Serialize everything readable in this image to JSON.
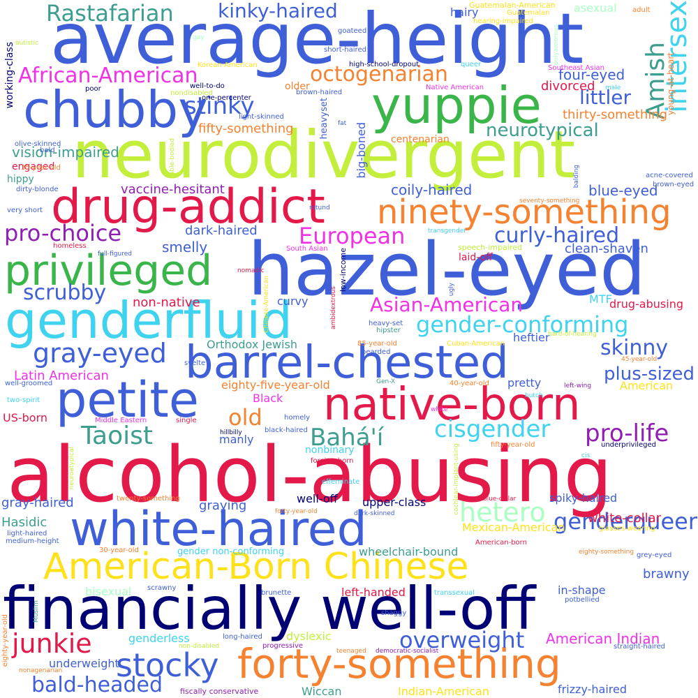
{
  "words": [
    {
      "t": "average-height",
      "c": "#3f5fd8"
    },
    {
      "t": "neurodivergent",
      "c": "#c3ef3c"
    },
    {
      "t": "chubby",
      "c": "#3f5fd8"
    },
    {
      "t": "yuppie",
      "c": "#39b54a"
    },
    {
      "t": "drug-addict",
      "c": "#e3194a"
    },
    {
      "t": "hazel-eyed",
      "c": "#3f5fd8"
    },
    {
      "t": "privileged",
      "c": "#39b54a"
    },
    {
      "t": "genderfluid",
      "c": "#3fd3f0"
    },
    {
      "t": "barrel-chested",
      "c": "#3f5fd8"
    },
    {
      "t": "petite",
      "c": "#3f5fd8"
    },
    {
      "t": "native-born",
      "c": "#e3194a"
    },
    {
      "t": "alcohol-abusing",
      "c": "#e3194a"
    },
    {
      "t": "white-haired",
      "c": "#3f5fd8"
    },
    {
      "t": "American-Born Chinese",
      "c": "#ffe11a"
    },
    {
      "t": "financially well-off",
      "c": "#000075"
    },
    {
      "t": "forty-something",
      "c": "#f58231"
    },
    {
      "t": "ninety-something",
      "c": "#f58231"
    },
    {
      "t": "Rastafarian",
      "c": "#3c9e8e"
    },
    {
      "t": "kinky-haired",
      "c": "#3f5fd8"
    },
    {
      "t": "African-American",
      "c": "#f032e6"
    },
    {
      "t": "octogenarian",
      "c": "#f58231"
    },
    {
      "t": "intersex",
      "c": "#3fd3f0"
    },
    {
      "t": "Amish",
      "c": "#3c9e8e"
    },
    {
      "t": "stinky",
      "c": "#3f5fd8"
    },
    {
      "t": "littler",
      "c": "#3f5fd8"
    },
    {
      "t": "neurotypical",
      "c": "#3c9e8e"
    },
    {
      "t": "curly-haired",
      "c": "#3f5fd8"
    },
    {
      "t": "pro-choice",
      "c": "#911eb4"
    },
    {
      "t": "European",
      "c": "#f032e6"
    },
    {
      "t": "scrubby",
      "c": "#3f5fd8"
    },
    {
      "t": "Asian-American",
      "c": "#f032e6"
    },
    {
      "t": "gender-conforming",
      "c": "#3fd3f0"
    },
    {
      "t": "gray-eyed",
      "c": "#3f5fd8"
    },
    {
      "t": "skinny",
      "c": "#3f5fd8"
    },
    {
      "t": "old",
      "c": "#f58231"
    },
    {
      "t": "Taoist",
      "c": "#3c9e8e"
    },
    {
      "t": "Bahá'í",
      "c": "#3c9e8e"
    },
    {
      "t": "cisgender",
      "c": "#3fd3f0"
    },
    {
      "t": "pro-life",
      "c": "#911eb4"
    },
    {
      "t": "plus-sized",
      "c": "#3f5fd8"
    },
    {
      "t": "junkie",
      "c": "#e3194a"
    },
    {
      "t": "stocky",
      "c": "#3f5fd8"
    },
    {
      "t": "overweight",
      "c": "#3f5fd8"
    },
    {
      "t": "bald-headed",
      "c": "#3f5fd8"
    },
    {
      "t": "hetero",
      "c": "#aaffc3"
    },
    {
      "t": "genderqueer",
      "c": "#3f5fd8"
    },
    {
      "t": "Wiccan",
      "c": "#3c9e8e"
    },
    {
      "t": "vision-impaired",
      "c": "#3c9e8e"
    },
    {
      "t": "fifty-something",
      "c": "#f58231"
    },
    {
      "t": "four-eyed",
      "c": "#3f5fd8"
    },
    {
      "t": "divorced",
      "c": "#e3194a"
    },
    {
      "t": "thirty-something",
      "c": "#f58231"
    },
    {
      "t": "vaccine-hesitant",
      "c": "#911eb4"
    },
    {
      "t": "coily-haired",
      "c": "#3f5fd8"
    },
    {
      "t": "blue-eyed",
      "c": "#3f5fd8"
    },
    {
      "t": "dark-haired",
      "c": "#3f5fd8"
    },
    {
      "t": "smelly",
      "c": "#3f5fd8"
    },
    {
      "t": "clean-shaven",
      "c": "#3f5fd8"
    },
    {
      "t": "non-native",
      "c": "#e3194a"
    },
    {
      "t": "curvy",
      "c": "#3f5fd8"
    },
    {
      "t": "drug-abusing",
      "c": "#e3194a"
    },
    {
      "t": "MTF",
      "c": "#3fd3f0"
    },
    {
      "t": "heftier",
      "c": "#3f5fd8"
    },
    {
      "t": "Orthodox Jewish",
      "c": "#3c9e8e"
    },
    {
      "t": "Latin American",
      "c": "#f032e6"
    },
    {
      "t": "eighty-five-year-old",
      "c": "#f58231"
    },
    {
      "t": "pretty",
      "c": "#3f5fd8"
    },
    {
      "t": "American",
      "c": "#ffe11a"
    },
    {
      "t": "Black",
      "c": "#f032e6"
    },
    {
      "t": "US-born",
      "c": "#e3194a"
    },
    {
      "t": "manly",
      "c": "#3f5fd8"
    },
    {
      "t": "nonbinary",
      "c": "#3fd3f0"
    },
    {
      "t": "gray-haired",
      "c": "#3f5fd8"
    },
    {
      "t": "graying",
      "c": "#3f5fd8"
    },
    {
      "t": "well-off",
      "c": "#000075"
    },
    {
      "t": "upper-class",
      "c": "#000075"
    },
    {
      "t": "spiky-haired",
      "c": "#3f5fd8"
    },
    {
      "t": "white-collar",
      "c": "#e3194a"
    },
    {
      "t": "Hasidic",
      "c": "#3c9e8e"
    },
    {
      "t": "Mexican-American",
      "c": "#ffe11a"
    },
    {
      "t": "gender non-conforming",
      "c": "#3fd3f0"
    },
    {
      "t": "wheelchair-bound",
      "c": "#3c9e8e"
    },
    {
      "t": "brawny",
      "c": "#3f5fd8"
    },
    {
      "t": "bisexual",
      "c": "#aaffc3"
    },
    {
      "t": "left-handed",
      "c": "#e3194a"
    },
    {
      "t": "in-shape",
      "c": "#3f5fd8"
    },
    {
      "t": "genderless",
      "c": "#3fd3f0"
    },
    {
      "t": "dyslexic",
      "c": "#c3ef3c"
    },
    {
      "t": "American Indian",
      "c": "#f032e6"
    },
    {
      "t": "underweight",
      "c": "#3f5fd8"
    },
    {
      "t": "Indian-American",
      "c": "#ffe11a"
    },
    {
      "t": "frizzy-haired",
      "c": "#3f5fd8"
    },
    {
      "t": "hairy",
      "c": "#3f5fd8"
    },
    {
      "t": "asexual",
      "c": "#aaffc3"
    },
    {
      "t": "engaged",
      "c": "#e3194a"
    },
    {
      "t": "hippy",
      "c": "#3c9e8e"
    },
    {
      "t": "centenarian",
      "c": "#f58231"
    },
    {
      "t": "big-boned",
      "c": "#3f5fd8"
    },
    {
      "t": "older",
      "c": "#f58231"
    },
    {
      "t": "laid-off",
      "c": "#e3194a"
    },
    {
      "t": "working-class",
      "c": "#000075"
    },
    {
      "t": "heavyset",
      "c": "#3f5fd8"
    },
    {
      "t": "young-at-heart",
      "c": "#f58231"
    },
    {
      "t": "Guatemalan-American",
      "c": "#ffe11a"
    },
    {
      "t": "Guatemalan",
      "c": "#ffe11a"
    },
    {
      "t": "hearing-impaired",
      "c": "#ffe11a"
    },
    {
      "t": "adult",
      "c": "#f58231"
    },
    {
      "t": "goateed",
      "c": "#3f5fd8"
    },
    {
      "t": "short-haired",
      "c": "#3f5fd8"
    },
    {
      "t": "high-school-dropout",
      "c": "#000075"
    },
    {
      "t": "queer",
      "c": "#3fd3f0"
    },
    {
      "t": "Southeast Asian",
      "c": "#f032e6"
    },
    {
      "t": "Native American",
      "c": "#f032e6"
    },
    {
      "t": "male",
      "c": "#3fd3f0"
    },
    {
      "t": "Korean-American",
      "c": "#ffe11a"
    },
    {
      "t": "well-to-do",
      "c": "#000075"
    },
    {
      "t": "poor",
      "c": "#000075"
    },
    {
      "t": "nondisabled",
      "c": "#c3ef3c"
    },
    {
      "t": "brown-haired",
      "c": "#3f5fd8"
    },
    {
      "t": "one-percenter",
      "c": "#000075"
    },
    {
      "t": "light-skinned",
      "c": "#3f5fd8"
    },
    {
      "t": "fat",
      "c": "#3f5fd8"
    },
    {
      "t": "olive-skinned",
      "c": "#3f5fd8"
    },
    {
      "t": "bald",
      "c": "#3f5fd8"
    },
    {
      "t": "35-year-old",
      "c": "#f58231"
    },
    {
      "t": "dirty-blonde",
      "c": "#3f5fd8"
    },
    {
      "t": "very short",
      "c": "#3f5fd8"
    },
    {
      "t": "homeless",
      "c": "#e3194a"
    },
    {
      "t": "full-figured",
      "c": "#3f5fd8"
    },
    {
      "t": "South Asian",
      "c": "#f032e6"
    },
    {
      "t": "low-income",
      "c": "#000075"
    },
    {
      "t": "speech-impaired",
      "c": "#c3ef3c"
    },
    {
      "t": "transgender",
      "c": "#3fd3f0"
    },
    {
      "t": "rotund",
      "c": "#3f5fd8"
    },
    {
      "t": "nomadic",
      "c": "#e3194a"
    },
    {
      "t": "able-bodied",
      "c": "#c3ef3c"
    },
    {
      "t": "autistic",
      "c": "#c3ef3c"
    },
    {
      "t": "gay",
      "c": "#aaffc3"
    },
    {
      "t": "polyamorous",
      "c": "#aaffc3"
    },
    {
      "t": "seventy-something",
      "c": "#f58231"
    },
    {
      "t": "balding",
      "c": "#3f5fd8"
    },
    {
      "t": "acne-covered",
      "c": "#3f5fd8"
    },
    {
      "t": "brown-eyed",
      "c": "#3f5fd8"
    },
    {
      "t": "Chinese-American",
      "c": "#ffe11a"
    },
    {
      "t": "ambidextrous",
      "c": "#e3194a"
    },
    {
      "t": "heavy-set",
      "c": "#3f5fd8"
    },
    {
      "t": "hipster",
      "c": "#3c9e8e"
    },
    {
      "t": "ugly",
      "c": "#3f5fd8"
    },
    {
      "t": "85-year-old",
      "c": "#f58231"
    },
    {
      "t": "bearded",
      "c": "#3f5fd8"
    },
    {
      "t": "Cuban-American",
      "c": "#ffe11a"
    },
    {
      "t": "hard-of-hearing",
      "c": "#c3ef3c"
    },
    {
      "t": "45-year-old",
      "c": "#f58231"
    },
    {
      "t": "svelte",
      "c": "#3f5fd8"
    },
    {
      "t": "well-groomed",
      "c": "#3f5fd8"
    },
    {
      "t": "Gen-X",
      "c": "#3c9e8e"
    },
    {
      "t": "40-year-old",
      "c": "#f58231"
    },
    {
      "t": "left-wing",
      "c": "#911eb4"
    },
    {
      "t": "butch",
      "c": "#3fd3f0"
    },
    {
      "t": "two-spirit",
      "c": "#3fd3f0"
    },
    {
      "t": "white",
      "c": "#f032e6"
    },
    {
      "t": "Middle Eastern",
      "c": "#f032e6"
    },
    {
      "t": "single",
      "c": "#e3194a"
    },
    {
      "t": "homely",
      "c": "#3f5fd8"
    },
    {
      "t": "hillbilly",
      "c": "#000075"
    },
    {
      "t": "black-haired",
      "c": "#3f5fd8"
    },
    {
      "t": "fifty-year-old",
      "c": "#f58231"
    },
    {
      "t": "underprivileged",
      "c": "#000075"
    },
    {
      "t": "cochlear-implant-using",
      "c": "#c3ef3c"
    },
    {
      "t": "cis",
      "c": "#3fd3f0"
    },
    {
      "t": "foreign-born",
      "c": "#e3194a"
    },
    {
      "t": "neuroatypical",
      "c": "#c3ef3c"
    },
    {
      "t": "effeminate",
      "c": "#3fd3f0"
    },
    {
      "t": "twenty-something",
      "c": "#f58231"
    },
    {
      "t": "forty-year-old",
      "c": "#f58231"
    },
    {
      "t": "dark-skinned",
      "c": "#3f5fd8"
    },
    {
      "t": "blue-collar",
      "c": "#e3194a"
    },
    {
      "t": "glasses-wearing",
      "c": "#ffe11a"
    },
    {
      "t": "light-haired",
      "c": "#3f5fd8"
    },
    {
      "t": "medium-height",
      "c": "#3f5fd8"
    },
    {
      "t": "30-year-old",
      "c": "#f58231"
    },
    {
      "t": "American-born",
      "c": "#e3194a"
    },
    {
      "t": "eighty-something",
      "c": "#f58231"
    },
    {
      "t": "grey-eyed",
      "c": "#3f5fd8"
    },
    {
      "t": "scrawny",
      "c": "#3f5fd8"
    },
    {
      "t": "brunette",
      "c": "#3f5fd8"
    },
    {
      "t": "transsexual",
      "c": "#3fd3f0"
    },
    {
      "t": "potbellied",
      "c": "#3f5fd8"
    },
    {
      "t": "shaggy",
      "c": "#3f5fd8"
    },
    {
      "t": "Muslim",
      "c": "#3c9e8e"
    },
    {
      "t": "eighty-year-old",
      "c": "#f58231"
    },
    {
      "t": "long-haired",
      "c": "#3f5fd8"
    },
    {
      "t": "non-disabled",
      "c": "#c3ef3c"
    },
    {
      "t": "progressive",
      "c": "#911eb4"
    },
    {
      "t": "teenaged",
      "c": "#f58231"
    },
    {
      "t": "democratic-socialist",
      "c": "#911eb4"
    },
    {
      "t": "straight-haired",
      "c": "#3f5fd8"
    },
    {
      "t": "nonagenarian",
      "c": "#f58231"
    },
    {
      "t": "fiscally conservative",
      "c": "#911eb4"
    }
  ]
}
